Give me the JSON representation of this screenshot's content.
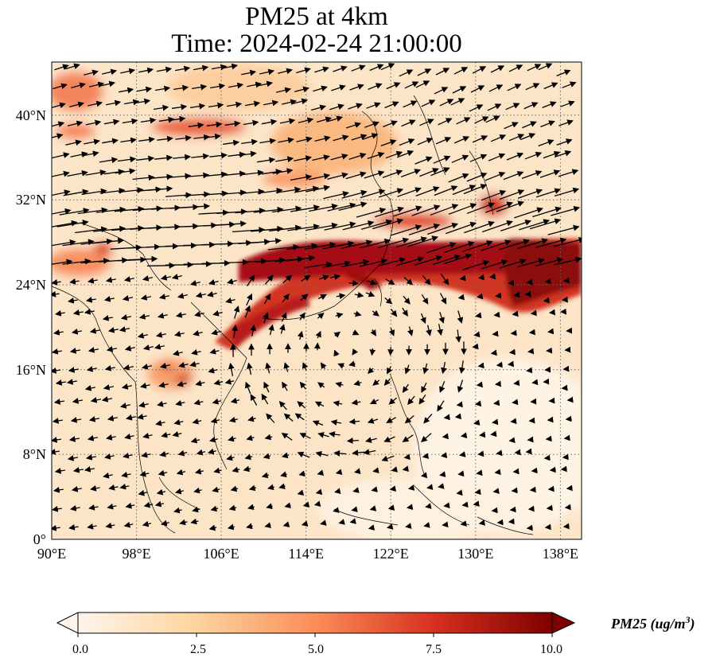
{
  "title": {
    "line1": "PM25 at 4km",
    "line2": "Time: 2024-02-24 21:00:00"
  },
  "map": {
    "lon_ticks": [
      "90°E",
      "98°E",
      "106°E",
      "114°E",
      "122°E",
      "130°E",
      "138°E"
    ],
    "lat_ticks": [
      "0°",
      "8°N",
      "16°N",
      "24°N",
      "32°N",
      "40°N"
    ],
    "lon_range": [
      90,
      140
    ],
    "lat_range": [
      0,
      45
    ],
    "gridlines": true,
    "vectors": "wind vectors (arrows) overlaid"
  },
  "colorbar": {
    "ticks": [
      "0.0",
      "2.5",
      "5.0",
      "7.5",
      "10.0"
    ],
    "range": [
      0,
      10
    ],
    "colormap": [
      "#fff5eb",
      "#fdd49e",
      "#fc8d59",
      "#d7301f",
      "#7f0000"
    ],
    "label_main": "PM25 (ug/m",
    "label_sup": "3",
    "label_end": ")"
  }
}
